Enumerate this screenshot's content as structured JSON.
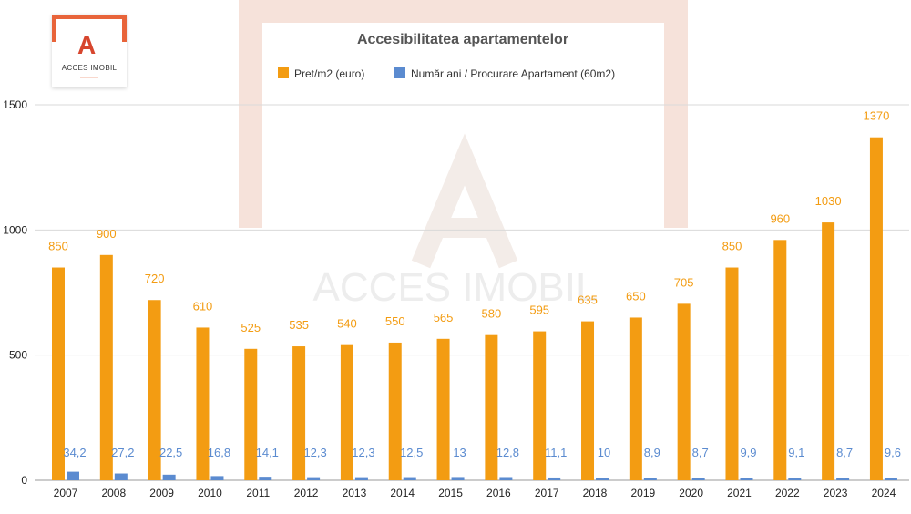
{
  "logo": {
    "name": "ACCES IMOBIL",
    "mark_icon": "acces-imobil-logo-icon"
  },
  "watermark": "ACCES IMOBIL",
  "colors": {
    "price": "#f39c12",
    "years": "#5b8bd0",
    "grid": "#d9d9d9",
    "axis_text": "#222222",
    "title": "#555555"
  },
  "chart_data": {
    "type": "bar",
    "title": "Accesibilitatea apartamentelor",
    "categories": [
      "2007",
      "2008",
      "2009",
      "2010",
      "2011",
      "2012",
      "2013",
      "2014",
      "2015",
      "2016",
      "2017",
      "2018",
      "2019",
      "2020",
      "2021",
      "2022",
      "2023",
      "2024"
    ],
    "series": [
      {
        "name": "Pret/m2 (euro)",
        "values": [
          850,
          900,
          720,
          610,
          525,
          535,
          540,
          550,
          565,
          580,
          595,
          635,
          650,
          705,
          850,
          960,
          1030,
          1370
        ],
        "labels": [
          "850",
          "900",
          "720",
          "610",
          "525",
          "535",
          "540",
          "550",
          "565",
          "580",
          "595",
          "635",
          "650",
          "705",
          "850",
          "960",
          "1030",
          "1370"
        ]
      },
      {
        "name": "Număr ani / Procurare Apartament (60m2)",
        "values": [
          34.2,
          27.2,
          22.5,
          16.8,
          14.1,
          12.3,
          12.3,
          12.5,
          13,
          12.8,
          11.1,
          10,
          8.9,
          8.7,
          9.9,
          9.1,
          8.7,
          9.6
        ],
        "labels": [
          "34,2",
          "27,2",
          "22,5",
          "16,8",
          "14,1",
          "12,3",
          "12,3",
          "12,5",
          "13",
          "12,8",
          "11,1",
          "10",
          "8,9",
          "8,7",
          "9,9",
          "9,1",
          "8,7",
          "9,6"
        ]
      }
    ],
    "yticks": [
      "0",
      "500",
      "1000",
      "1500"
    ],
    "ylim": [
      0,
      1500
    ],
    "grid": true,
    "legend": "top-center"
  }
}
